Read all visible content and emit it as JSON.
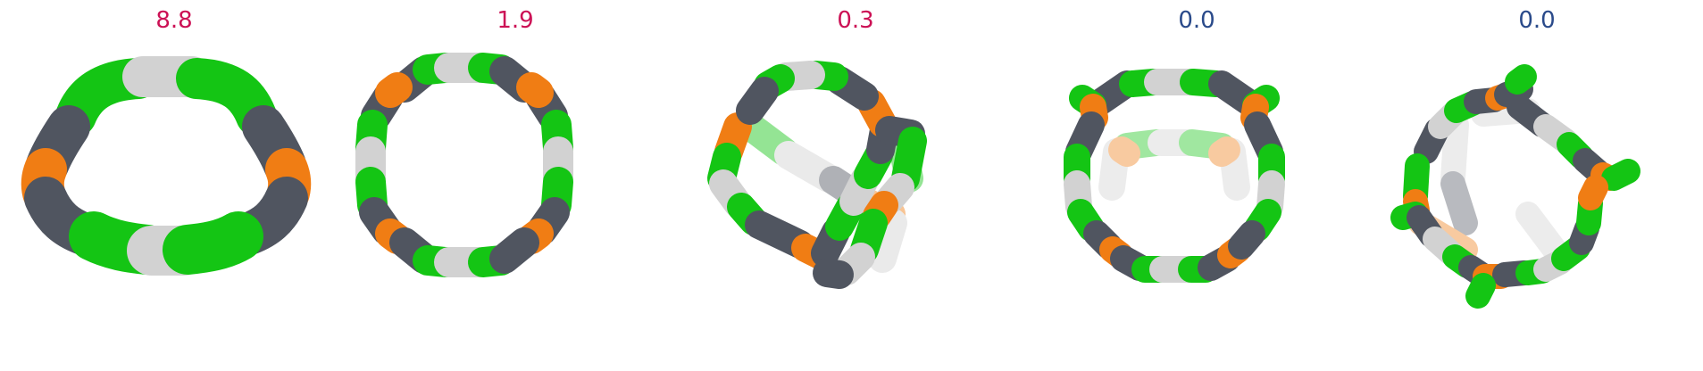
{
  "colors": {
    "high_score": "#cc1155",
    "low_score": "#2a4a8a",
    "green": "#14c514",
    "gray": "#505560",
    "white": "#d2d2d2",
    "orange": "#f07d14"
  },
  "panels": [
    {
      "score": "8.8",
      "score_color": "#cc1155",
      "icon": "ring-molecule-saddle"
    },
    {
      "score": "1.9",
      "score_color": "#cc1155",
      "icon": "ring-molecule-oval"
    },
    {
      "score": "0.3",
      "score_color": "#cc1155",
      "icon": "ring-molecule-twisted"
    },
    {
      "score": "0.0",
      "score_color": "#2a4a8a",
      "icon": "ring-molecule-cage"
    },
    {
      "score": "0.0",
      "score_color": "#2a4a8a",
      "icon": "ring-molecule-tilted-cage"
    }
  ]
}
